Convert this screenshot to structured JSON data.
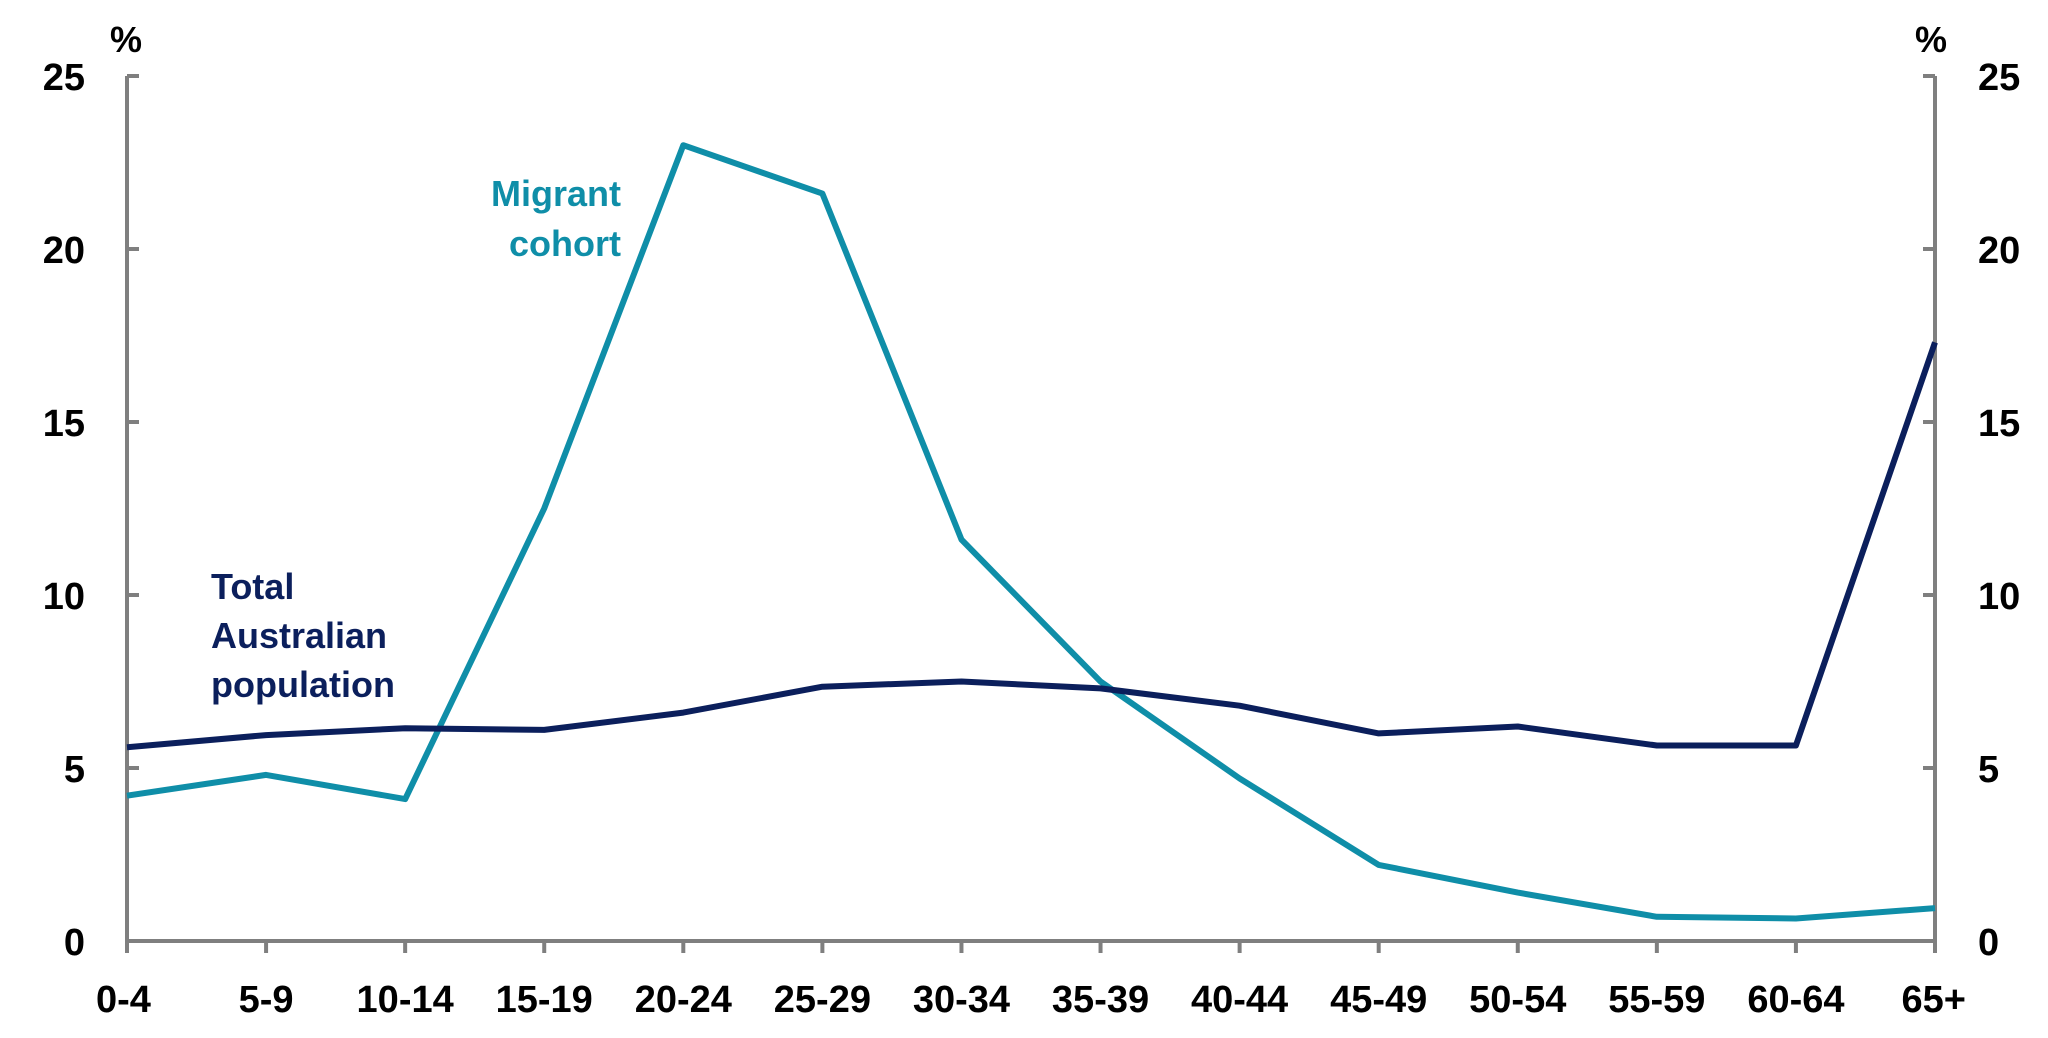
{
  "chart_data": {
    "type": "line",
    "title": "",
    "xlabel": "",
    "ylabel": "",
    "y_unit_left": "%",
    "y_unit_right": "%",
    "ylim": [
      0,
      25
    ],
    "yticks": [
      0,
      5,
      10,
      15,
      20,
      25
    ],
    "grid": false,
    "legend": "inline labels",
    "categories": [
      "0-4",
      "5-9",
      "10-14",
      "15-19",
      "20-24",
      "25-29",
      "30-34",
      "35-39",
      "40-44",
      "45-49",
      "50-54",
      "55-59",
      "60-64",
      "65+"
    ],
    "series": [
      {
        "name": "Migrant cohort",
        "label_lines": [
          "Migrant",
          "cohort"
        ],
        "color": "#0f8ea8",
        "values": [
          4.2,
          4.8,
          4.1,
          12.5,
          23.0,
          21.6,
          11.6,
          7.5,
          4.7,
          2.2,
          1.4,
          0.7,
          0.65,
          0.95
        ]
      },
      {
        "name": "Total Australian population",
        "label_lines": [
          "Total",
          "Australian",
          "population"
        ],
        "color": "#0b1f5c",
        "values": [
          5.6,
          5.95,
          6.15,
          6.1,
          6.6,
          7.35,
          7.5,
          7.3,
          6.8,
          6.0,
          6.2,
          5.65,
          5.65,
          17.3
        ]
      }
    ]
  }
}
